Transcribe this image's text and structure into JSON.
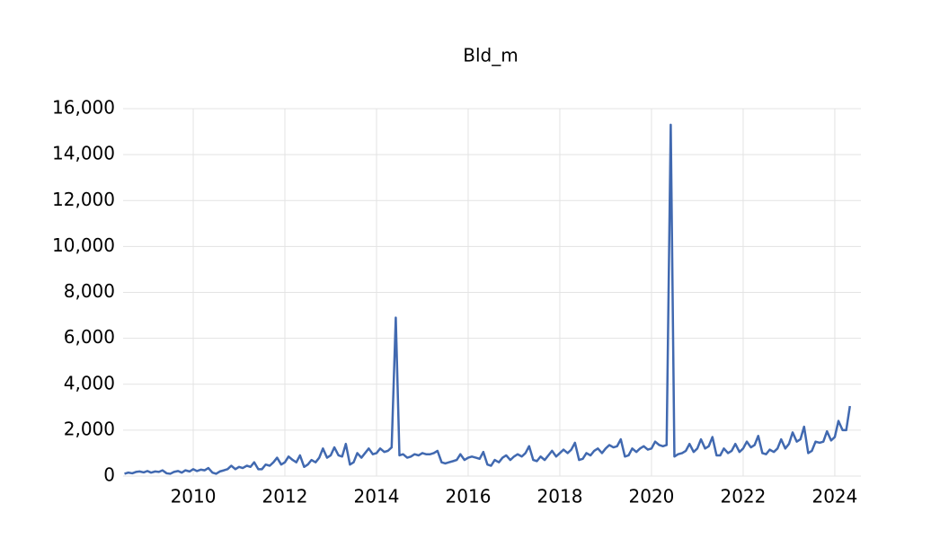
{
  "chart_data": {
    "type": "line",
    "title": "Bld_m",
    "x": [
      2008.5,
      2008.58,
      2008.67,
      2008.75,
      2008.83,
      2008.92,
      2009,
      2009.08,
      2009.17,
      2009.25,
      2009.33,
      2009.42,
      2009.5,
      2009.58,
      2009.67,
      2009.75,
      2009.83,
      2009.92,
      2010,
      2010.08,
      2010.17,
      2010.25,
      2010.33,
      2010.42,
      2010.5,
      2010.58,
      2010.67,
      2010.75,
      2010.83,
      2010.92,
      2011,
      2011.08,
      2011.17,
      2011.25,
      2011.33,
      2011.42,
      2011.5,
      2011.58,
      2011.67,
      2011.75,
      2011.83,
      2011.92,
      2012,
      2012.08,
      2012.17,
      2012.25,
      2012.33,
      2012.42,
      2012.5,
      2012.58,
      2012.67,
      2012.75,
      2012.83,
      2012.92,
      2013,
      2013.08,
      2013.17,
      2013.25,
      2013.33,
      2013.42,
      2013.5,
      2013.58,
      2013.67,
      2013.75,
      2013.83,
      2013.92,
      2014,
      2014.08,
      2014.17,
      2014.25,
      2014.33,
      2014.42,
      2014.5,
      2014.58,
      2014.67,
      2014.75,
      2014.83,
      2014.92,
      2015,
      2015.08,
      2015.17,
      2015.25,
      2015.33,
      2015.42,
      2015.5,
      2015.58,
      2015.67,
      2015.75,
      2015.83,
      2015.92,
      2016,
      2016.08,
      2016.17,
      2016.25,
      2016.33,
      2016.42,
      2016.5,
      2016.58,
      2016.67,
      2016.75,
      2016.83,
      2016.92,
      2017,
      2017.08,
      2017.17,
      2017.25,
      2017.33,
      2017.42,
      2017.5,
      2017.58,
      2017.67,
      2017.75,
      2017.83,
      2017.92,
      2018,
      2018.08,
      2018.17,
      2018.25,
      2018.33,
      2018.42,
      2018.5,
      2018.58,
      2018.67,
      2018.75,
      2018.83,
      2018.92,
      2019,
      2019.08,
      2019.17,
      2019.25,
      2019.33,
      2019.42,
      2019.5,
      2019.58,
      2019.67,
      2019.75,
      2019.83,
      2019.92,
      2020,
      2020.08,
      2020.17,
      2020.25,
      2020.33,
      2020.42,
      2020.5,
      2020.58,
      2020.67,
      2020.75,
      2020.83,
      2020.92,
      2021,
      2021.08,
      2021.17,
      2021.25,
      2021.33,
      2021.42,
      2021.5,
      2021.58,
      2021.67,
      2021.75,
      2021.83,
      2021.92,
      2022,
      2022.08,
      2022.17,
      2022.25,
      2022.33,
      2022.42,
      2022.5,
      2022.58,
      2022.67,
      2022.75,
      2022.83,
      2022.92,
      2023,
      2023.08,
      2023.17,
      2023.25,
      2023.33,
      2023.42,
      2023.5,
      2023.58,
      2023.67,
      2023.75,
      2023.83,
      2023.92,
      2024,
      2024.08,
      2024.17,
      2024.25,
      2024.33
    ],
    "series": [
      {
        "color": "#4169b0",
        "values": [
          100,
          150,
          120,
          180,
          200,
          160,
          220,
          150,
          200,
          180,
          250,
          120,
          100,
          180,
          220,
          150,
          250,
          200,
          300,
          220,
          280,
          250,
          350,
          150,
          100,
          200,
          250,
          300,
          450,
          300,
          400,
          350,
          450,
          400,
          600,
          300,
          300,
          500,
          450,
          600,
          800,
          500,
          600,
          850,
          700,
          600,
          900,
          400,
          500,
          700,
          600,
          800,
          1200,
          800,
          900,
          1250,
          900,
          850,
          1400,
          500,
          600,
          1000,
          800,
          1000,
          1200,
          950,
          1000,
          1200,
          1050,
          1100,
          1250,
          6900,
          900,
          950,
          800,
          850,
          950,
          900,
          1000,
          950,
          950,
          1000,
          1100,
          600,
          550,
          600,
          650,
          700,
          950,
          700,
          800,
          850,
          800,
          750,
          1050,
          500,
          450,
          700,
          600,
          800,
          900,
          700,
          850,
          950,
          850,
          1000,
          1300,
          700,
          650,
          850,
          700,
          900,
          1100,
          850,
          1000,
          1150,
          1000,
          1150,
          1450,
          700,
          750,
          1000,
          900,
          1100,
          1200,
          1000,
          1200,
          1350,
          1250,
          1300,
          1600,
          850,
          900,
          1200,
          1050,
          1200,
          1300,
          1150,
          1200,
          1500,
          1350,
          1300,
          1350,
          15300,
          850,
          950,
          1000,
          1100,
          1400,
          1050,
          1200,
          1600,
          1200,
          1300,
          1700,
          900,
          900,
          1200,
          1000,
          1100,
          1400,
          1050,
          1200,
          1500,
          1250,
          1350,
          1750,
          1000,
          950,
          1150,
          1050,
          1200,
          1600,
          1200,
          1400,
          1900,
          1500,
          1600,
          2150,
          1000,
          1100,
          1500,
          1450,
          1500,
          1950,
          1550,
          1700,
          2400,
          2000,
          2000,
          3050
        ]
      }
    ],
    "xlim": [
      2008.47,
      2024.57
    ],
    "xticks": [
      2010,
      2012,
      2014,
      2016,
      2018,
      2020,
      2022,
      2024
    ],
    "ylim": [
      0,
      16000
    ],
    "yticks": [
      0,
      {
        "value": 2000,
        "label": "2,000"
      },
      {
        "value": 4000,
        "label": "4,000"
      },
      {
        "value": 6000,
        "label": "6,000"
      },
      {
        "value": 8000,
        "label": "8,000"
      },
      {
        "value": 10000,
        "label": "10,000"
      },
      {
        "value": 12000,
        "label": "12,000"
      },
      {
        "value": 14000,
        "label": "14,000"
      },
      {
        "value": 16000,
        "label": "16,000"
      }
    ],
    "grid": true
  }
}
